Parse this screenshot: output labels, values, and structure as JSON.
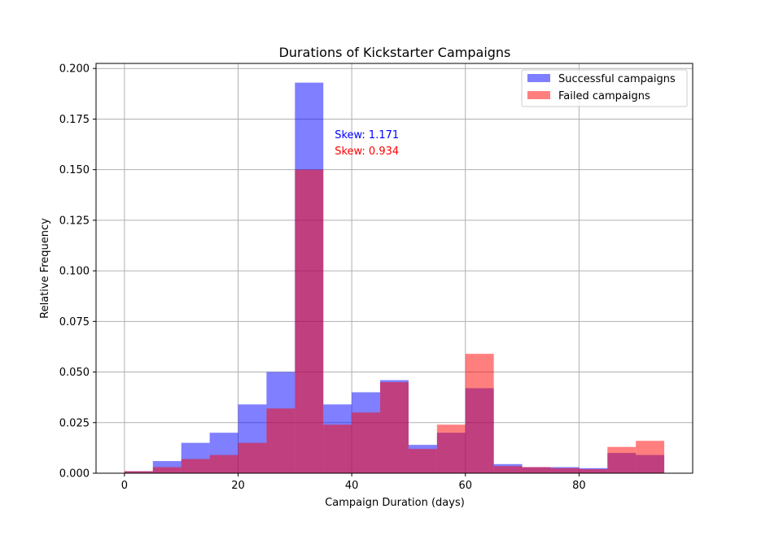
{
  "chart_data": {
    "type": "bar",
    "title": "Durations of Kickstarter Campaigns",
    "xlabel": "Campaign Duration (days)",
    "ylabel": "Relative Frequency",
    "xlim": [
      -5,
      100
    ],
    "ylim": [
      0,
      0.2025
    ],
    "x_ticks": [
      0,
      20,
      40,
      60,
      80
    ],
    "x_tick_labels": [
      "0",
      "20",
      "40",
      "60",
      "80"
    ],
    "y_ticks": [
      0,
      0.025,
      0.05,
      0.075,
      0.1,
      0.125,
      0.15,
      0.175,
      0.2
    ],
    "y_tick_labels": [
      "0.000",
      "0.025",
      "0.050",
      "0.075",
      "0.100",
      "0.125",
      "0.150",
      "0.175",
      "0.200"
    ],
    "grid": true,
    "legend_position": "top-right",
    "bin_edges": [
      0,
      5,
      10,
      15,
      20,
      25,
      30,
      35,
      40,
      45,
      50,
      55,
      60,
      65,
      70,
      75,
      80,
      85,
      90,
      95
    ],
    "series": [
      {
        "name": "Successful campaigns",
        "color": "#0000ff",
        "opacity": 0.5,
        "values": [
          0.001,
          0.006,
          0.015,
          0.02,
          0.034,
          0.05,
          0.193,
          0.034,
          0.04,
          0.046,
          0.014,
          0.02,
          0.042,
          0.0045,
          0.003,
          0.003,
          0.0025,
          0.01,
          0.009
        ]
      },
      {
        "name": "Failed campaigns",
        "color": "#ff0000",
        "opacity": 0.5,
        "values": [
          0.001,
          0.003,
          0.007,
          0.009,
          0.015,
          0.032,
          0.15,
          0.024,
          0.03,
          0.045,
          0.012,
          0.024,
          0.059,
          0.0035,
          0.003,
          0.0025,
          0.002,
          0.013,
          0.016
        ]
      }
    ],
    "annotations": [
      {
        "text": "Skew: 1.171",
        "color": "#0000ff",
        "x": 37,
        "y": 0.1655
      },
      {
        "text": "Skew: 0.934",
        "color": "#ff0000",
        "x": 37,
        "y": 0.1575
      }
    ]
  }
}
